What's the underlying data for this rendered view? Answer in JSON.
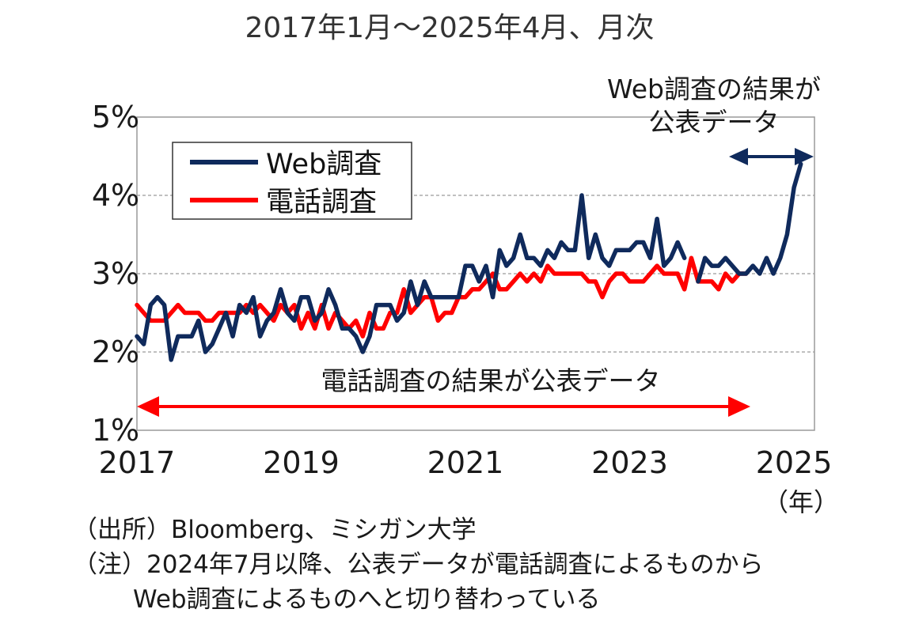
{
  "chart_data": {
    "type": "line",
    "title": "2017年1月～2025年4月、月次",
    "xlabel": "",
    "x_unit": "（年）",
    "ylabel": "",
    "x_start": "2017-01",
    "x_end": "2025-04",
    "xlim": [
      "2017-01",
      "2025-04"
    ],
    "ylim": [
      1,
      5
    ],
    "y_ticks": [
      "1%",
      "2%",
      "3%",
      "4%",
      "5%"
    ],
    "x_ticks": [
      "2017",
      "2019",
      "2021",
      "2023",
      "2025"
    ],
    "grid": "horizontal dashed",
    "legend_position": "top-left",
    "series": [
      {
        "name": "Web調査",
        "color": "#0f2a5c",
        "start": "2017-01",
        "values": [
          2.2,
          2.1,
          2.6,
          2.7,
          2.6,
          1.9,
          2.2,
          2.2,
          2.2,
          2.4,
          2.0,
          2.1,
          2.3,
          2.5,
          2.2,
          2.6,
          2.5,
          2.7,
          2.2,
          2.4,
          2.5,
          2.8,
          2.5,
          2.4,
          2.7,
          2.7,
          2.4,
          2.5,
          2.8,
          2.6,
          2.3,
          2.3,
          2.2,
          2.0,
          2.2,
          2.6,
          2.6,
          2.6,
          2.4,
          2.5,
          2.9,
          2.6,
          2.9,
          2.7,
          2.7,
          2.7,
          2.7,
          2.7,
          3.1,
          3.1,
          2.9,
          3.1,
          2.7,
          3.3,
          3.1,
          3.2,
          3.5,
          3.2,
          3.2,
          3.1,
          3.3,
          3.2,
          3.4,
          3.3,
          3.3,
          4.0,
          3.2,
          3.5,
          3.2,
          3.1,
          3.3,
          3.3,
          3.3,
          3.4,
          3.4,
          3.2,
          3.7,
          3.1,
          3.2,
          3.4,
          3.2,
          null,
          2.9,
          3.2,
          3.1,
          3.1,
          3.2,
          3.1,
          3.0,
          3.0,
          3.1,
          3.0,
          3.2,
          3.0,
          3.2,
          3.5,
          4.1,
          4.4
        ]
      },
      {
        "name": "電話調査",
        "color": "#ff0000",
        "start": "2017-01",
        "values": [
          2.6,
          2.5,
          2.4,
          2.4,
          2.4,
          2.5,
          2.6,
          2.5,
          2.5,
          2.5,
          2.4,
          2.4,
          2.5,
          2.5,
          2.5,
          2.5,
          2.6,
          2.5,
          2.6,
          2.5,
          2.4,
          2.6,
          2.5,
          2.6,
          2.3,
          2.5,
          2.3,
          2.6,
          2.3,
          2.5,
          2.4,
          2.3,
          2.4,
          2.2,
          2.5,
          2.3,
          2.3,
          2.5,
          2.5,
          2.8,
          2.5,
          2.6,
          2.7,
          2.7,
          2.4,
          2.5,
          2.5,
          2.7,
          2.7,
          2.8,
          2.8,
          2.9,
          3.0,
          2.8,
          2.8,
          2.9,
          3.0,
          2.9,
          3.0,
          2.9,
          3.1,
          3.0,
          3.0,
          3.0,
          3.0,
          3.0,
          2.9,
          2.9,
          2.7,
          2.9,
          3.0,
          3.0,
          2.9,
          2.9,
          2.9,
          3.0,
          3.1,
          3.0,
          3.0,
          3.0,
          2.8,
          3.2,
          2.9,
          2.9,
          2.9,
          2.8,
          3.0,
          2.9,
          3.0,
          3.0
        ]
      }
    ],
    "annotations": {
      "web_period": {
        "lines": [
          "Web調査の結果が",
          "公表データ"
        ],
        "from": "2024-07",
        "to": "2025-04",
        "color": "#0f2a5c"
      },
      "phone_period": {
        "text": "電話調査の結果が公表データ",
        "from": "2017-01",
        "to": "2024-06",
        "color": "#ff0000"
      }
    }
  },
  "notes": {
    "source": "（出所）Bloomberg、ミシガン大学",
    "note_line1": "（注）2024年7月以降、公表データが電話調査によるものから",
    "note_line2": "Web調査によるものへと切り替わっている"
  }
}
